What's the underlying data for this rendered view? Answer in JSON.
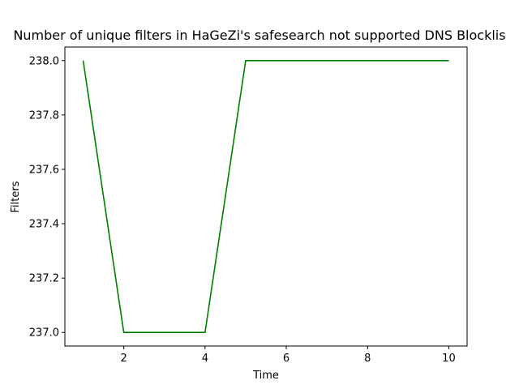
{
  "chart_data": {
    "type": "line",
    "title": "Number of unique filters in HaGeZi's safesearch not supported DNS Blocklis",
    "xlabel": "Time",
    "ylabel": "Filters",
    "x": [
      1,
      2,
      3,
      4,
      5,
      6,
      7,
      8,
      9,
      10
    ],
    "series": [
      {
        "values": [
          238,
          237,
          237,
          237,
          238,
          238,
          238,
          238,
          238,
          238
        ],
        "color": "#008000"
      }
    ],
    "xlim": [
      0.55,
      10.45
    ],
    "ylim": [
      236.95,
      238.05
    ],
    "xticks": [
      2,
      4,
      6,
      8,
      10
    ],
    "xtick_labels": [
      "2",
      "4",
      "6",
      "8",
      "10"
    ],
    "yticks": [
      237.0,
      237.2,
      237.4,
      237.6,
      237.8,
      238.0
    ],
    "ytick_labels": [
      "237.0",
      "237.2",
      "237.4",
      "237.6",
      "237.8",
      "238.0"
    ],
    "grid": false,
    "legend": "none"
  }
}
